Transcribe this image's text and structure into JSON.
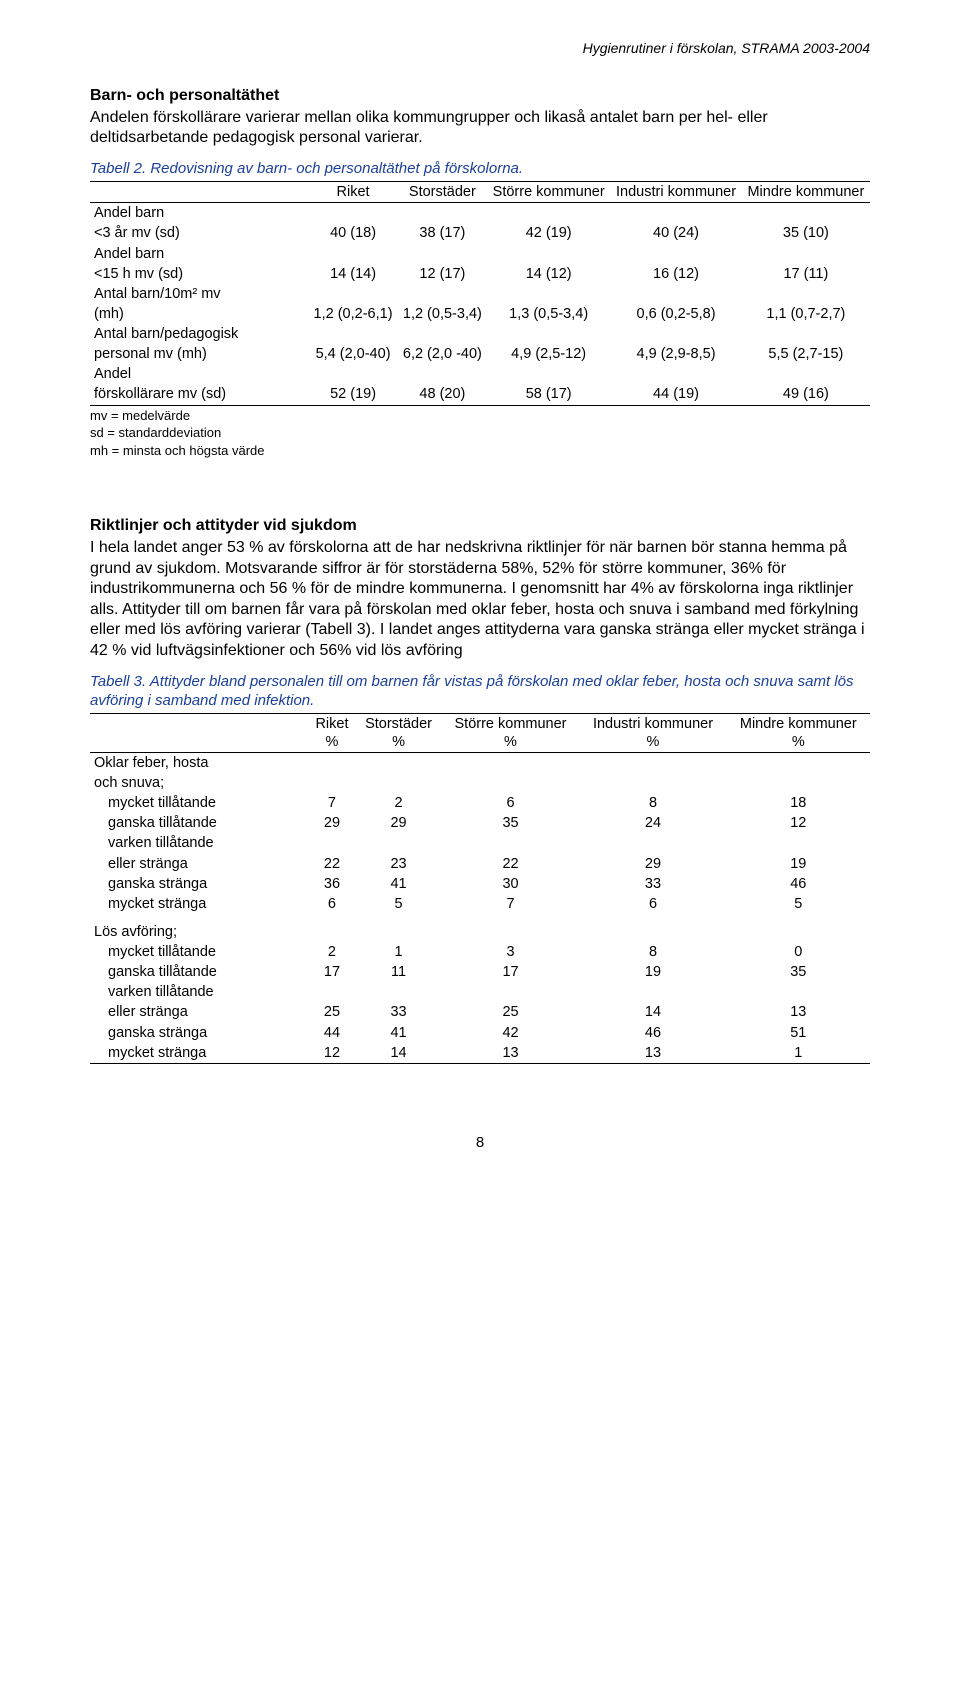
{
  "running_head": "Hygienrutiner i förskolan, STRAMA 2003-2004",
  "section1": {
    "title": "Barn- och personaltäthet",
    "para": "Andelen förskollärare varierar mellan olika kommungrupper och likaså antalet barn per hel- eller deltidsarbetande pedagogisk personal varierar."
  },
  "table2": {
    "caption": "Tabell 2. Redovisning av barn- och personaltäthet på förskolorna.",
    "head": [
      "",
      "Riket",
      "Storstäder",
      "Större kommuner",
      "Industri kommuner",
      "Mindre kommuner"
    ],
    "rows": [
      {
        "label": "Andel barn",
        "sub": "<3 år  mv (sd)",
        "cells": [
          "40 (18)",
          "38 (17)",
          "42 (19)",
          "40 (24)",
          "35 (10)"
        ]
      },
      {
        "label": "Andel barn",
        "sub": "<15 h mv (sd)",
        "cells": [
          "14 (14)",
          "12 (17)",
          "14 (12)",
          "16 (12)",
          "17 (11)"
        ]
      },
      {
        "label": "Antal barn/10m² mv",
        "sub": "(mh)",
        "cells": [
          "1,2 (0,2-6,1)",
          "1,2 (0,5-3,4)",
          "1,3 (0,5-3,4)",
          "0,6 (0,2-5,8)",
          "1,1 (0,7-2,7)"
        ]
      },
      {
        "label": "Antal barn/pedagogisk",
        "sub": "personal mv (mh)",
        "cells": [
          "5,4 (2,0-40)",
          "6,2 (2,0 -40)",
          "4,9 (2,5-12)",
          "4,9 (2,9-8,5)",
          "5,5 (2,7-15)"
        ]
      },
      {
        "label": "Andel",
        "sub": "förskollärare mv (sd)",
        "cells": [
          "52 (19)",
          "48 (20)",
          "58 (17)",
          "44 (19)",
          "49 (16)"
        ]
      }
    ],
    "footnotes": [
      "mv = medelvärde",
      "sd = standarddeviation",
      "mh = minsta och högsta värde"
    ]
  },
  "section2": {
    "title": "Riktlinjer och attityder vid sjukdom",
    "para": "I hela landet anger 53 % av förskolorna att de har nedskrivna riktlinjer för när barnen bör stanna hemma på grund av sjukdom. Motsvarande siffror är för storstäderna 58%, 52% för större kommuner, 36% för industrikommunerna och 56 % för de mindre kommunerna. I genomsnitt har 4% av förskolorna inga riktlinjer alls. Attityder till om barnen får vara på förskolan med oklar feber, hosta och snuva i samband med förkylning eller med lös avföring varierar (Tabell 3). I landet anges attityderna vara ganska stränga eller mycket stränga i 42 % vid luftvägsinfektioner och 56% vid lös avföring"
  },
  "table3": {
    "caption": "Tabell 3. Attityder bland personalen till om barnen får vistas på förskolan med oklar feber, hosta och snuva samt lös avföring i samband med infektion.",
    "head_line1": [
      "",
      "Riket",
      "Storstäder",
      "Större kommuner",
      "Industri kommuner",
      "Mindre kommuner"
    ],
    "head_line2": [
      "",
      "%",
      "%",
      "%",
      "%",
      "%"
    ],
    "group1_label1": "Oklar feber, hosta",
    "group1_label2": "och snuva;",
    "group1_rows": [
      {
        "label": "mycket tillåtande",
        "cells": [
          "7",
          "2",
          "6",
          "8",
          "18"
        ]
      },
      {
        "label": "ganska tillåtande",
        "cells": [
          "29",
          "29",
          "35",
          "24",
          "12"
        ]
      },
      {
        "label_line1": "varken tillåtande",
        "label_line2": "eller stränga",
        "cells": [
          "22",
          "23",
          "22",
          "29",
          "19"
        ]
      },
      {
        "label": "ganska stränga",
        "cells": [
          "36",
          "41",
          "30",
          "33",
          "46"
        ]
      },
      {
        "label": "mycket stränga",
        "cells": [
          "6",
          "5",
          "7",
          "6",
          "5"
        ]
      }
    ],
    "group2_label": "Lös avföring;",
    "group2_rows": [
      {
        "label": "mycket tillåtande",
        "cells": [
          "2",
          "1",
          "3",
          "8",
          "0"
        ]
      },
      {
        "label": "ganska tillåtande",
        "cells": [
          "17",
          "11",
          "17",
          "19",
          "35"
        ]
      },
      {
        "label_line1": "varken tillåtande",
        "label_line2": "eller stränga",
        "cells": [
          "25",
          "33",
          "25",
          "14",
          "13"
        ]
      },
      {
        "label": "ganska stränga",
        "cells": [
          "44",
          "41",
          "42",
          "46",
          "51"
        ]
      },
      {
        "label": "mycket stränga",
        "cells": [
          "12",
          "14",
          "13",
          "13",
          "1"
        ]
      }
    ]
  },
  "page_number": "8",
  "colors": {
    "text": "#000000",
    "caption": "#1a3f9c",
    "background": "#ffffff"
  }
}
